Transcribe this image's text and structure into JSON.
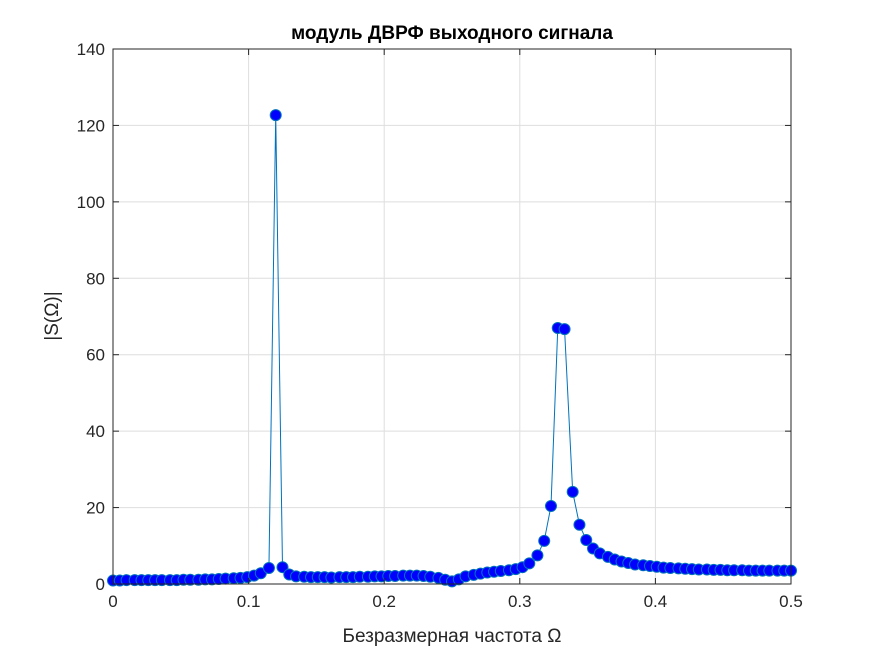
{
  "chart_data": {
    "type": "line",
    "title": "модуль ДВРФ выходного сигнала",
    "xlabel": "Безразмерная частота Ω",
    "ylabel": "|S(Ω)|",
    "xlim": [
      0,
      0.5
    ],
    "ylim": [
      0,
      140
    ],
    "xticks": [
      0,
      0.1,
      0.2,
      0.3,
      0.4,
      0.5
    ],
    "xtick_labels": [
      "0",
      "0.1",
      "0.2",
      "0.3",
      "0.4",
      "0.5"
    ],
    "yticks": [
      0,
      20,
      40,
      60,
      80,
      100,
      120,
      140
    ],
    "ytick_labels": [
      "0",
      "20",
      "40",
      "60",
      "80",
      "100",
      "120",
      "140"
    ],
    "grid": true,
    "line_color": "#0072BD",
    "marker_color": "#0000FF",
    "marker": "circle",
    "series": [
      {
        "x": [
          0,
          0.005,
          0.01,
          0.016,
          0.021,
          0.026,
          0.031,
          0.036,
          0.042,
          0.047,
          0.052,
          0.057,
          0.063,
          0.068,
          0.073,
          0.078,
          0.083,
          0.089,
          0.094,
          0.099,
          0.104,
          0.109,
          0.115,
          0.12,
          0.125,
          0.13,
          0.135,
          0.141,
          0.146,
          0.151,
          0.156,
          0.161,
          0.167,
          0.172,
          0.177,
          0.182,
          0.188,
          0.193,
          0.198,
          0.203,
          0.208,
          0.214,
          0.219,
          0.224,
          0.229,
          0.234,
          0.24,
          0.245,
          0.25,
          0.255,
          0.26,
          0.266,
          0.271,
          0.276,
          0.281,
          0.286,
          0.292,
          0.297,
          0.302,
          0.307,
          0.313,
          0.318,
          0.323,
          0.328,
          0.333,
          0.339,
          0.344,
          0.349,
          0.354,
          0.359,
          0.365,
          0.37,
          0.375,
          0.38,
          0.385,
          0.391,
          0.396,
          0.401,
          0.406,
          0.411,
          0.417,
          0.422,
          0.427,
          0.432,
          0.438,
          0.443,
          0.448,
          0.453,
          0.458,
          0.464,
          0.469,
          0.474,
          0.479,
          0.484,
          0.49,
          0.495,
          0.5
        ],
        "values": [
          0.9,
          0.9,
          1.0,
          1.0,
          1.0,
          1.0,
          1.0,
          1.0,
          1.0,
          1.0,
          1.1,
          1.1,
          1.1,
          1.2,
          1.2,
          1.3,
          1.4,
          1.5,
          1.6,
          1.8,
          2.2,
          2.8,
          4.2,
          122.7,
          4.4,
          2.5,
          2.0,
          1.9,
          1.8,
          1.8,
          1.8,
          1.7,
          1.8,
          1.8,
          1.8,
          1.9,
          1.9,
          2.0,
          2.0,
          2.1,
          2.1,
          2.2,
          2.2,
          2.2,
          2.1,
          1.9,
          1.6,
          1.1,
          0.7,
          1.2,
          2.0,
          2.4,
          2.7,
          3.0,
          3.2,
          3.4,
          3.6,
          3.9,
          4.4,
          5.4,
          7.5,
          11.3,
          20.4,
          67.0,
          66.7,
          24.1,
          15.5,
          11.5,
          9.3,
          8.0,
          7.1,
          6.4,
          5.9,
          5.5,
          5.1,
          4.9,
          4.7,
          4.5,
          4.3,
          4.2,
          4.1,
          4.0,
          3.9,
          3.8,
          3.8,
          3.7,
          3.7,
          3.6,
          3.6,
          3.6,
          3.5,
          3.5,
          3.5,
          3.5,
          3.5,
          3.5,
          3.5
        ]
      }
    ]
  }
}
